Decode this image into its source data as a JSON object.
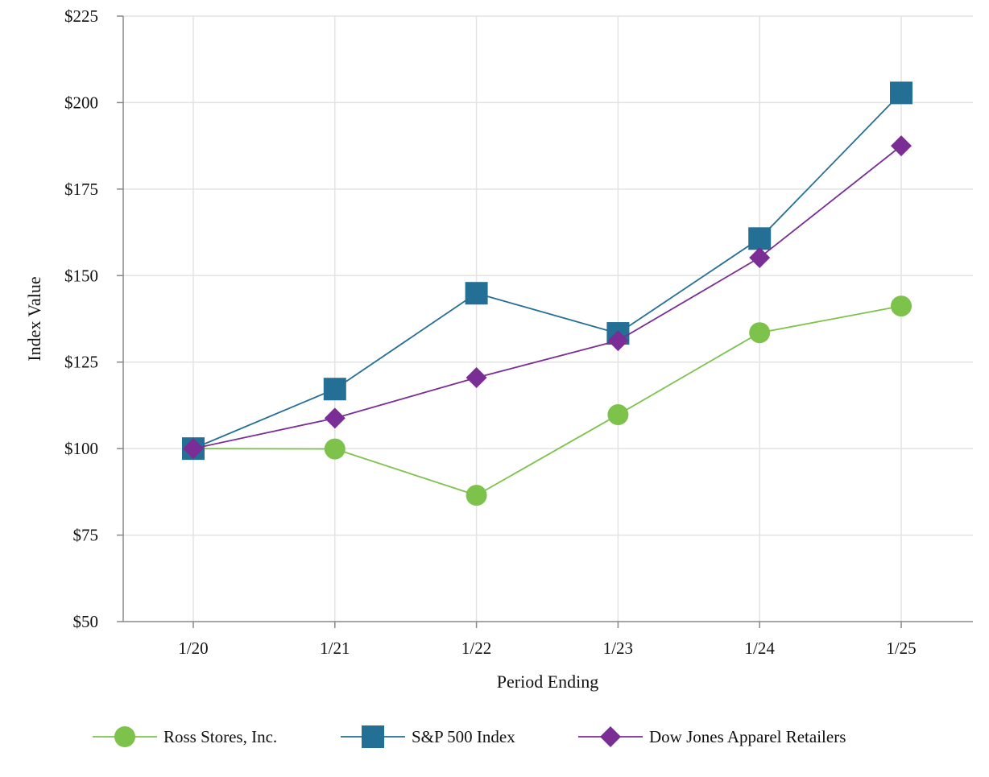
{
  "chart_data": {
    "type": "line",
    "title": "",
    "xlabel": "Period Ending",
    "ylabel": "Index Value",
    "categories": [
      "1/20",
      "1/21",
      "1/22",
      "1/23",
      "1/24",
      "1/25"
    ],
    "ylim": [
      50,
      225
    ],
    "yticks": [
      50,
      75,
      100,
      125,
      150,
      175,
      200,
      225
    ],
    "ytick_labels": [
      "$50",
      "$75",
      "$100",
      "$125",
      "$150",
      "$175",
      "$200",
      "$225"
    ],
    "grid": true,
    "legend_position": "bottom",
    "series": [
      {
        "name": "Ross Stores, Inc.",
        "marker": "circle",
        "color": "#7dc24b",
        "values": [
          100,
          99.9,
          86.5,
          109.8,
          133.5,
          141.2
        ]
      },
      {
        "name": "S&P 500 Index",
        "marker": "square",
        "color": "#236f96",
        "values": [
          100,
          117.2,
          144.9,
          133.3,
          160.7,
          202.8
        ]
      },
      {
        "name": "Dow Jones Apparel Retailers",
        "marker": "diamond",
        "color": "#7b2d96",
        "values": [
          100,
          108.8,
          120.5,
          131.2,
          155.2,
          187.5
        ]
      }
    ]
  }
}
